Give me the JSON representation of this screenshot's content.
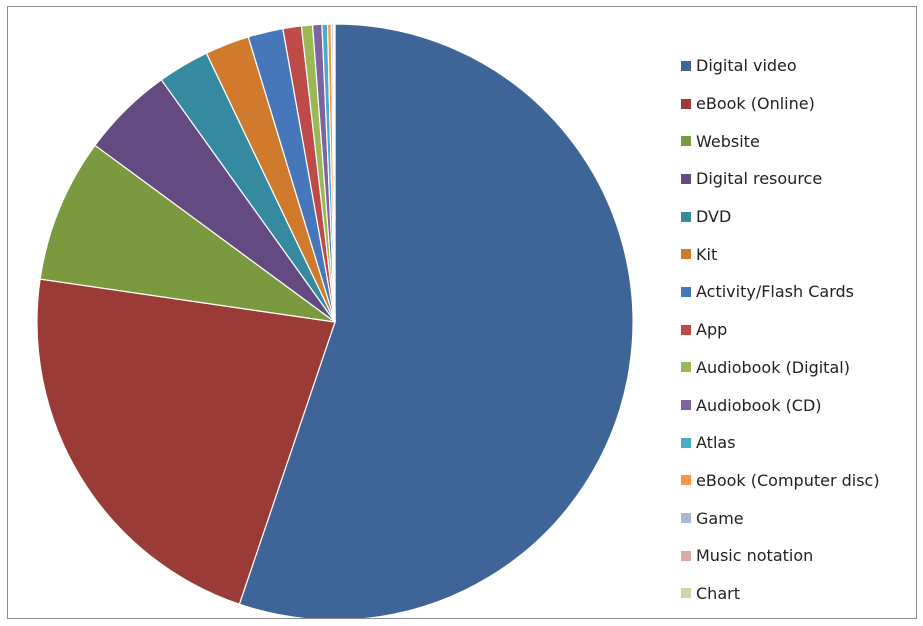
{
  "chart_data": {
    "type": "pie",
    "title": "",
    "start_angle": "12 o'clock",
    "direction": "clockwise",
    "legend_position": "right",
    "slices": [
      {
        "label": "Digital video",
        "value": 55.2,
        "color": "#3F6497"
      },
      {
        "label": "eBook (Online)",
        "value": 22.1,
        "color": "#9B3B38"
      },
      {
        "label": "Website",
        "value": 7.8,
        "color": "#7B9A3F"
      },
      {
        "label": "Digital resource",
        "value": 5.0,
        "color": "#634A81"
      },
      {
        "label": "DVD",
        "value": 2.8,
        "color": "#368AA0"
      },
      {
        "label": "Kit",
        "value": 2.4,
        "color": "#D07A2D"
      },
      {
        "label": "Activity/Flash Cards",
        "value": 1.9,
        "color": "#4677BA"
      },
      {
        "label": "App",
        "value": 1.0,
        "color": "#BF4B48"
      },
      {
        "label": "Audiobook (Digital)",
        "value": 0.6,
        "color": "#98B954"
      },
      {
        "label": "Audiobook (CD)",
        "value": 0.5,
        "color": "#7E63A0"
      },
      {
        "label": "Atlas",
        "value": 0.3,
        "color": "#4BACC6"
      },
      {
        "label": "eBook (Computer disc)",
        "value": 0.2,
        "color": "#F79646"
      },
      {
        "label": "Game",
        "value": 0.1,
        "color": "#A9B8D9"
      },
      {
        "label": "Music notation",
        "value": 0.05,
        "color": "#DAA9A8"
      },
      {
        "label": "Chart",
        "value": 0.05,
        "color": "#C6D9A8"
      }
    ]
  }
}
